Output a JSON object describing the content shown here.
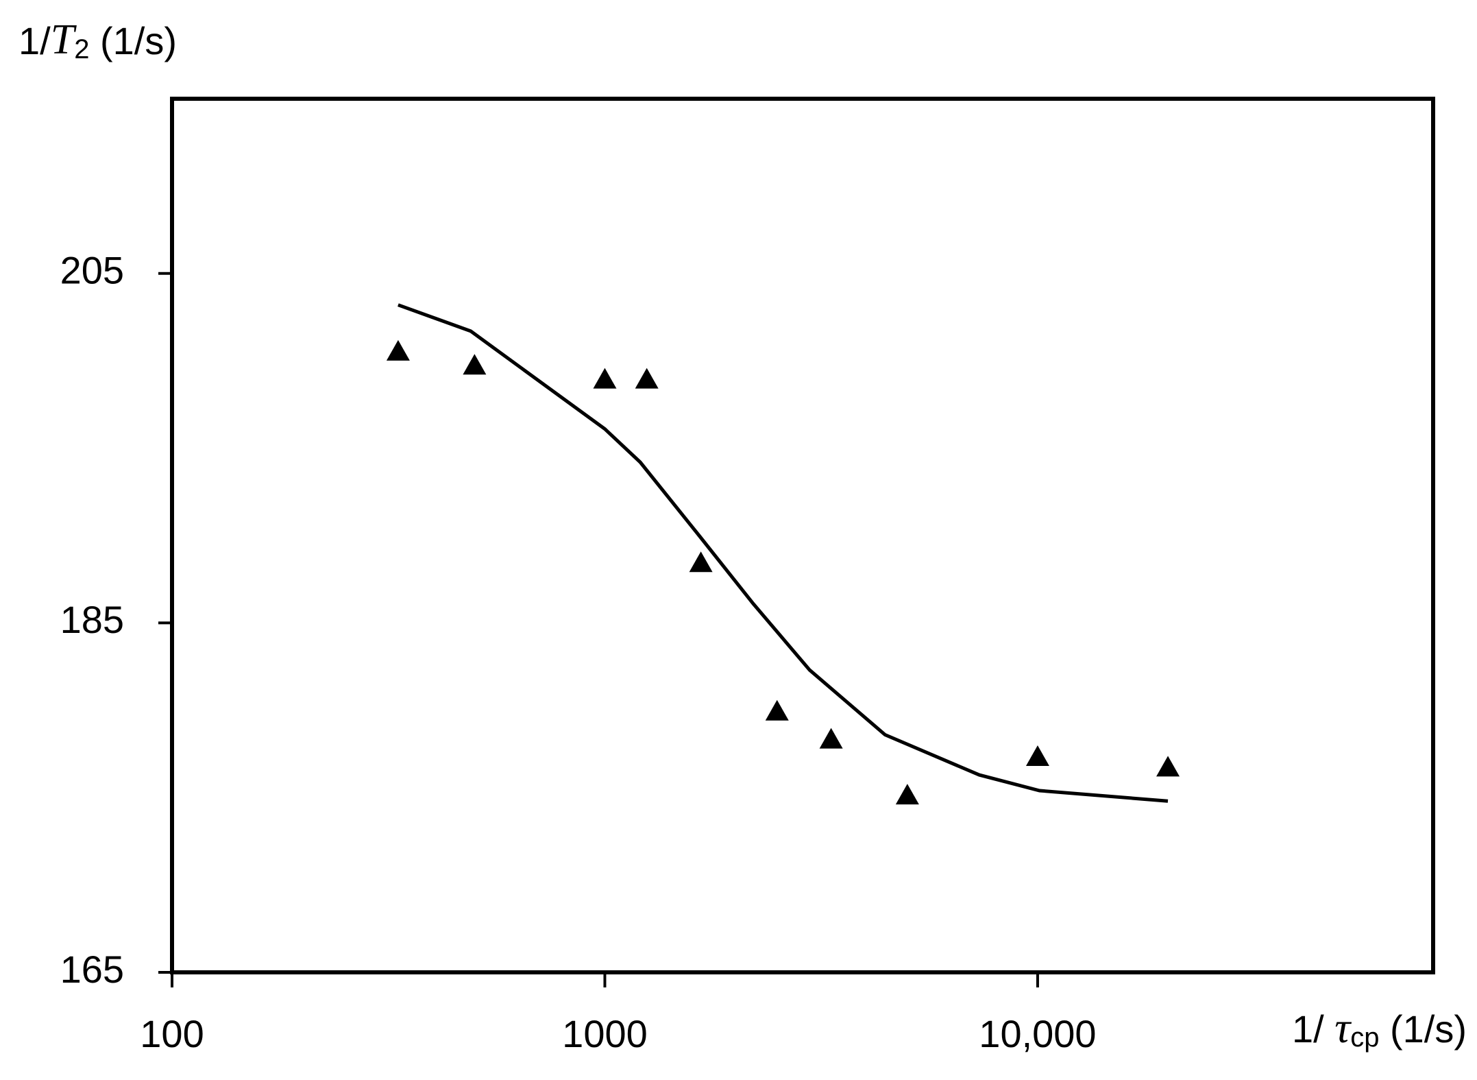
{
  "chart_data": {
    "type": "scatter",
    "y_label": [
      "1/",
      "T",
      "2",
      " (1/s)"
    ],
    "x_label": [
      "1/ ",
      "τ",
      "cp",
      "  (1/s)"
    ],
    "x_scale": "log",
    "xlim": [
      100,
      82000
    ],
    "xticks": [
      100,
      1000,
      {
        "value": 10000,
        "label": "10,000"
      }
    ],
    "ylim": [
      165,
      215
    ],
    "yticks": [
      165,
      185,
      205
    ],
    "grid": false,
    "series": [
      {
        "mode": "markers",
        "marker": "triangle",
        "color": "#000000",
        "x": [
          333,
          500,
          1000,
          1250,
          1667,
          2500,
          3333,
          5000,
          10000,
          20000
        ],
        "values": [
          200.6,
          199.8,
          199.0,
          199.0,
          188.5,
          180.0,
          178.4,
          175.2,
          177.4,
          176.8
        ]
      },
      {
        "mode": "line",
        "color": "#000000",
        "x": [
          333,
          490,
          1000,
          1207,
          1663,
          2202,
          2974,
          4440,
          7330,
          10100,
          20000
        ],
        "values": [
          203.2,
          201.7,
          196.1,
          194.2,
          189.9,
          186.1,
          182.3,
          178.6,
          176.3,
          175.4,
          174.8
        ]
      }
    ]
  }
}
